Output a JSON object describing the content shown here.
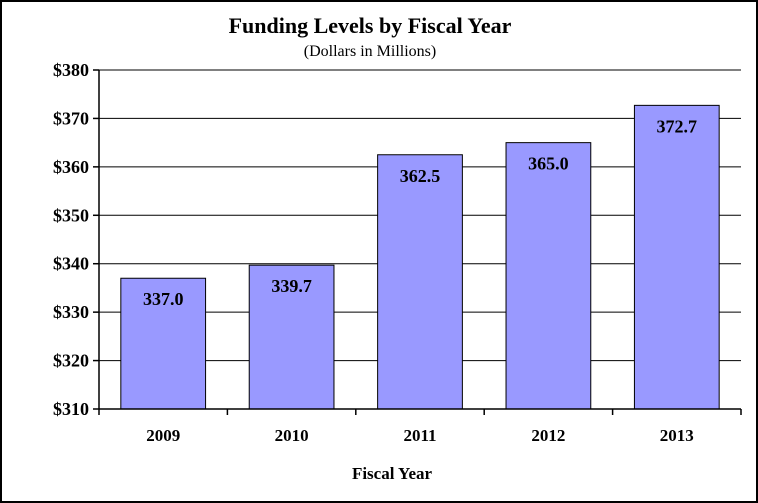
{
  "chart_data": {
    "type": "bar",
    "title": "Funding Levels by Fiscal Year",
    "subtitle": "(Dollars in Millions)",
    "xlabel": "Fiscal Year",
    "ylabel": "",
    "categories": [
      "2009",
      "2010",
      "2011",
      "2012",
      "2013"
    ],
    "values": [
      337.0,
      339.7,
      362.5,
      365.0,
      372.7
    ],
    "value_labels": [
      "337.0",
      "339.7",
      "362.5",
      "365.0",
      "372.7"
    ],
    "ylim": [
      310,
      380
    ],
    "yticks": [
      310,
      320,
      330,
      340,
      350,
      360,
      370,
      380
    ],
    "ytick_labels": [
      "$310",
      "$320",
      "$330",
      "$340",
      "$350",
      "$360",
      "$370",
      "$380"
    ],
    "grid": true,
    "legend": "none",
    "bar_color": "#9999ff"
  }
}
